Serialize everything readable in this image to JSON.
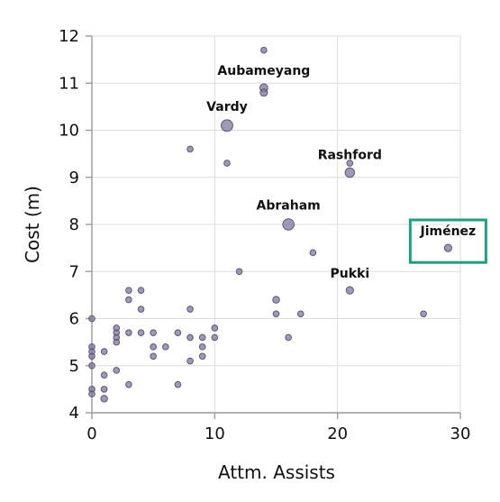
{
  "colors": {
    "background": "#ffffff",
    "axis": "#9a9a9a",
    "grid": "#dddddd",
    "point_fill": "#7a7296",
    "point_stroke": "#5e5678",
    "text": "#111111",
    "highlight": "#1f9f7f"
  },
  "chart_data": {
    "type": "scatter",
    "title": "",
    "xlabel": "Attm. Assists",
    "ylabel": "Cost (m)",
    "xlim": [
      0,
      30
    ],
    "ylim": [
      4,
      12
    ],
    "grid": true,
    "x_ticks": [
      0,
      10,
      20,
      30
    ],
    "y_ticks": [
      4,
      5,
      6,
      7,
      8,
      9,
      10,
      11,
      12
    ],
    "highlighted_label": "Jiménez",
    "points": [
      {
        "x": 0,
        "y": 6.0,
        "size": 2
      },
      {
        "x": 0,
        "y": 5.4,
        "size": 2
      },
      {
        "x": 0,
        "y": 5.3,
        "size": 2
      },
      {
        "x": 0,
        "y": 5.2,
        "size": 2
      },
      {
        "x": 0,
        "y": 5.0,
        "size": 2
      },
      {
        "x": 0,
        "y": 4.5,
        "size": 2
      },
      {
        "x": 0,
        "y": 4.4,
        "size": 2
      },
      {
        "x": 1,
        "y": 5.3,
        "size": 2
      },
      {
        "x": 1,
        "y": 4.8,
        "size": 2
      },
      {
        "x": 1,
        "y": 4.5,
        "size": 2
      },
      {
        "x": 1,
        "y": 4.3,
        "size": 3
      },
      {
        "x": 2,
        "y": 5.8,
        "size": 2
      },
      {
        "x": 2,
        "y": 5.7,
        "size": 2
      },
      {
        "x": 2,
        "y": 5.6,
        "size": 2
      },
      {
        "x": 2,
        "y": 5.5,
        "size": 2
      },
      {
        "x": 2,
        "y": 4.9,
        "size": 2
      },
      {
        "x": 3,
        "y": 6.6,
        "size": 2
      },
      {
        "x": 3,
        "y": 6.4,
        "size": 2
      },
      {
        "x": 3,
        "y": 5.7,
        "size": 2
      },
      {
        "x": 3,
        "y": 4.6,
        "size": 2
      },
      {
        "x": 4,
        "y": 6.6,
        "size": 2
      },
      {
        "x": 4,
        "y": 6.2,
        "size": 2
      },
      {
        "x": 4,
        "y": 5.7,
        "size": 2
      },
      {
        "x": 5,
        "y": 5.7,
        "size": 2
      },
      {
        "x": 5,
        "y": 5.4,
        "size": 2
      },
      {
        "x": 5,
        "y": 5.2,
        "size": 2
      },
      {
        "x": 6,
        "y": 5.4,
        "size": 2
      },
      {
        "x": 7,
        "y": 5.7,
        "size": 2
      },
      {
        "x": 7,
        "y": 4.6,
        "size": 2
      },
      {
        "x": 8,
        "y": 9.6,
        "size": 2
      },
      {
        "x": 8,
        "y": 6.2,
        "size": 2
      },
      {
        "x": 8,
        "y": 5.6,
        "size": 2
      },
      {
        "x": 8,
        "y": 5.1,
        "size": 2
      },
      {
        "x": 9,
        "y": 5.6,
        "size": 2
      },
      {
        "x": 9,
        "y": 5.4,
        "size": 2
      },
      {
        "x": 9,
        "y": 5.2,
        "size": 2
      },
      {
        "x": 10,
        "y": 5.8,
        "size": 2
      },
      {
        "x": 10,
        "y": 5.6,
        "size": 2
      },
      {
        "x": 11,
        "y": 10.1,
        "size": 14,
        "label": "Vardy"
      },
      {
        "x": 11,
        "y": 9.3,
        "size": 2
      },
      {
        "x": 12,
        "y": 7.0,
        "size": 2
      },
      {
        "x": 14,
        "y": 11.7,
        "size": 2
      },
      {
        "x": 14,
        "y": 10.9,
        "size": 5,
        "label": "Aubameyang"
      },
      {
        "x": 14,
        "y": 10.8,
        "size": 4
      },
      {
        "x": 15,
        "y": 6.4,
        "size": 3
      },
      {
        "x": 15,
        "y": 6.1,
        "size": 2
      },
      {
        "x": 16,
        "y": 8.0,
        "size": 13,
        "label": "Abraham"
      },
      {
        "x": 16,
        "y": 5.6,
        "size": 2
      },
      {
        "x": 17,
        "y": 6.1,
        "size": 2
      },
      {
        "x": 18,
        "y": 7.4,
        "size": 2
      },
      {
        "x": 21,
        "y": 9.3,
        "size": 2
      },
      {
        "x": 21,
        "y": 9.1,
        "size": 8,
        "label": "Rashford"
      },
      {
        "x": 21,
        "y": 6.6,
        "size": 4,
        "label": "Pukki"
      },
      {
        "x": 27,
        "y": 6.1,
        "size": 2
      },
      {
        "x": 29,
        "y": 7.5,
        "size": 4,
        "label": "Jiménez"
      }
    ]
  }
}
